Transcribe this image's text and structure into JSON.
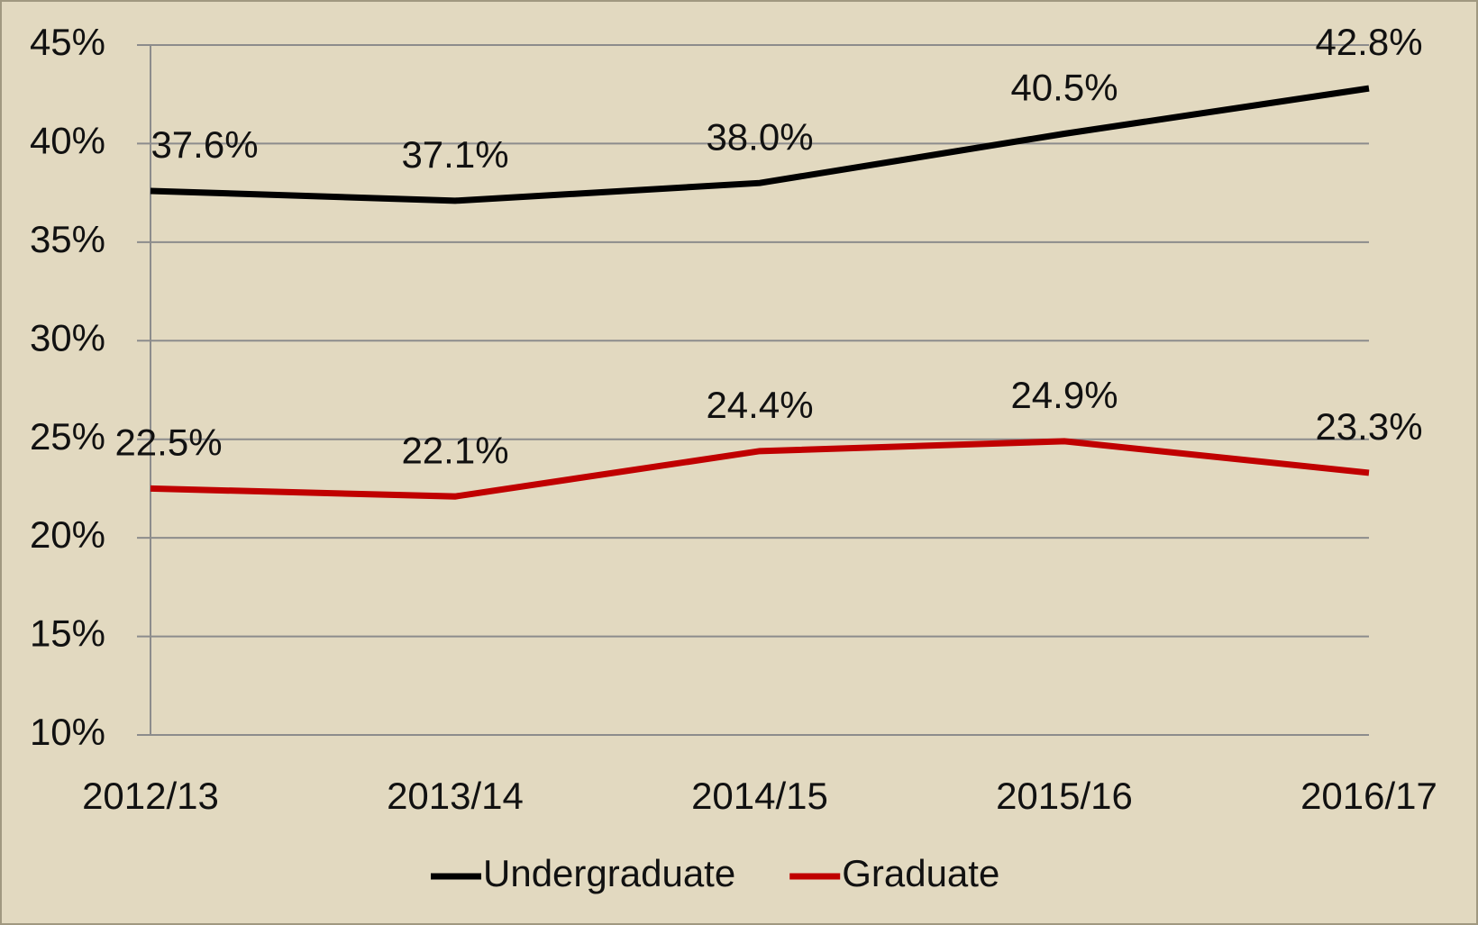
{
  "chart_data": {
    "type": "line",
    "categories": [
      "2012/13",
      "2013/14",
      "2014/15",
      "2015/16",
      "2016/17"
    ],
    "series": [
      {
        "name": "Undergraduate",
        "color": "#000000",
        "values": [
          37.6,
          37.1,
          38.0,
          40.5,
          42.8
        ],
        "value_labels": [
          "37.6%",
          "37.1%",
          "38.0%",
          "40.5%",
          "42.8%"
        ]
      },
      {
        "name": "Graduate",
        "color": "#c00000",
        "values": [
          22.5,
          22.1,
          24.4,
          24.9,
          23.3
        ],
        "value_labels": [
          "22.5%",
          "22.1%",
          "24.4%",
          "24.9%",
          "23.3%"
        ]
      }
    ],
    "ylim": [
      10,
      45
    ],
    "yticks": [
      {
        "value": 10,
        "label": "10%"
      },
      {
        "value": 15,
        "label": "15%"
      },
      {
        "value": 20,
        "label": "20%"
      },
      {
        "value": 25,
        "label": "25%"
      },
      {
        "value": 30,
        "label": "30%"
      },
      {
        "value": 35,
        "label": "35%"
      },
      {
        "value": 40,
        "label": "40%"
      },
      {
        "value": 45,
        "label": "45%"
      }
    ],
    "grid": true,
    "legend": "bottom"
  }
}
